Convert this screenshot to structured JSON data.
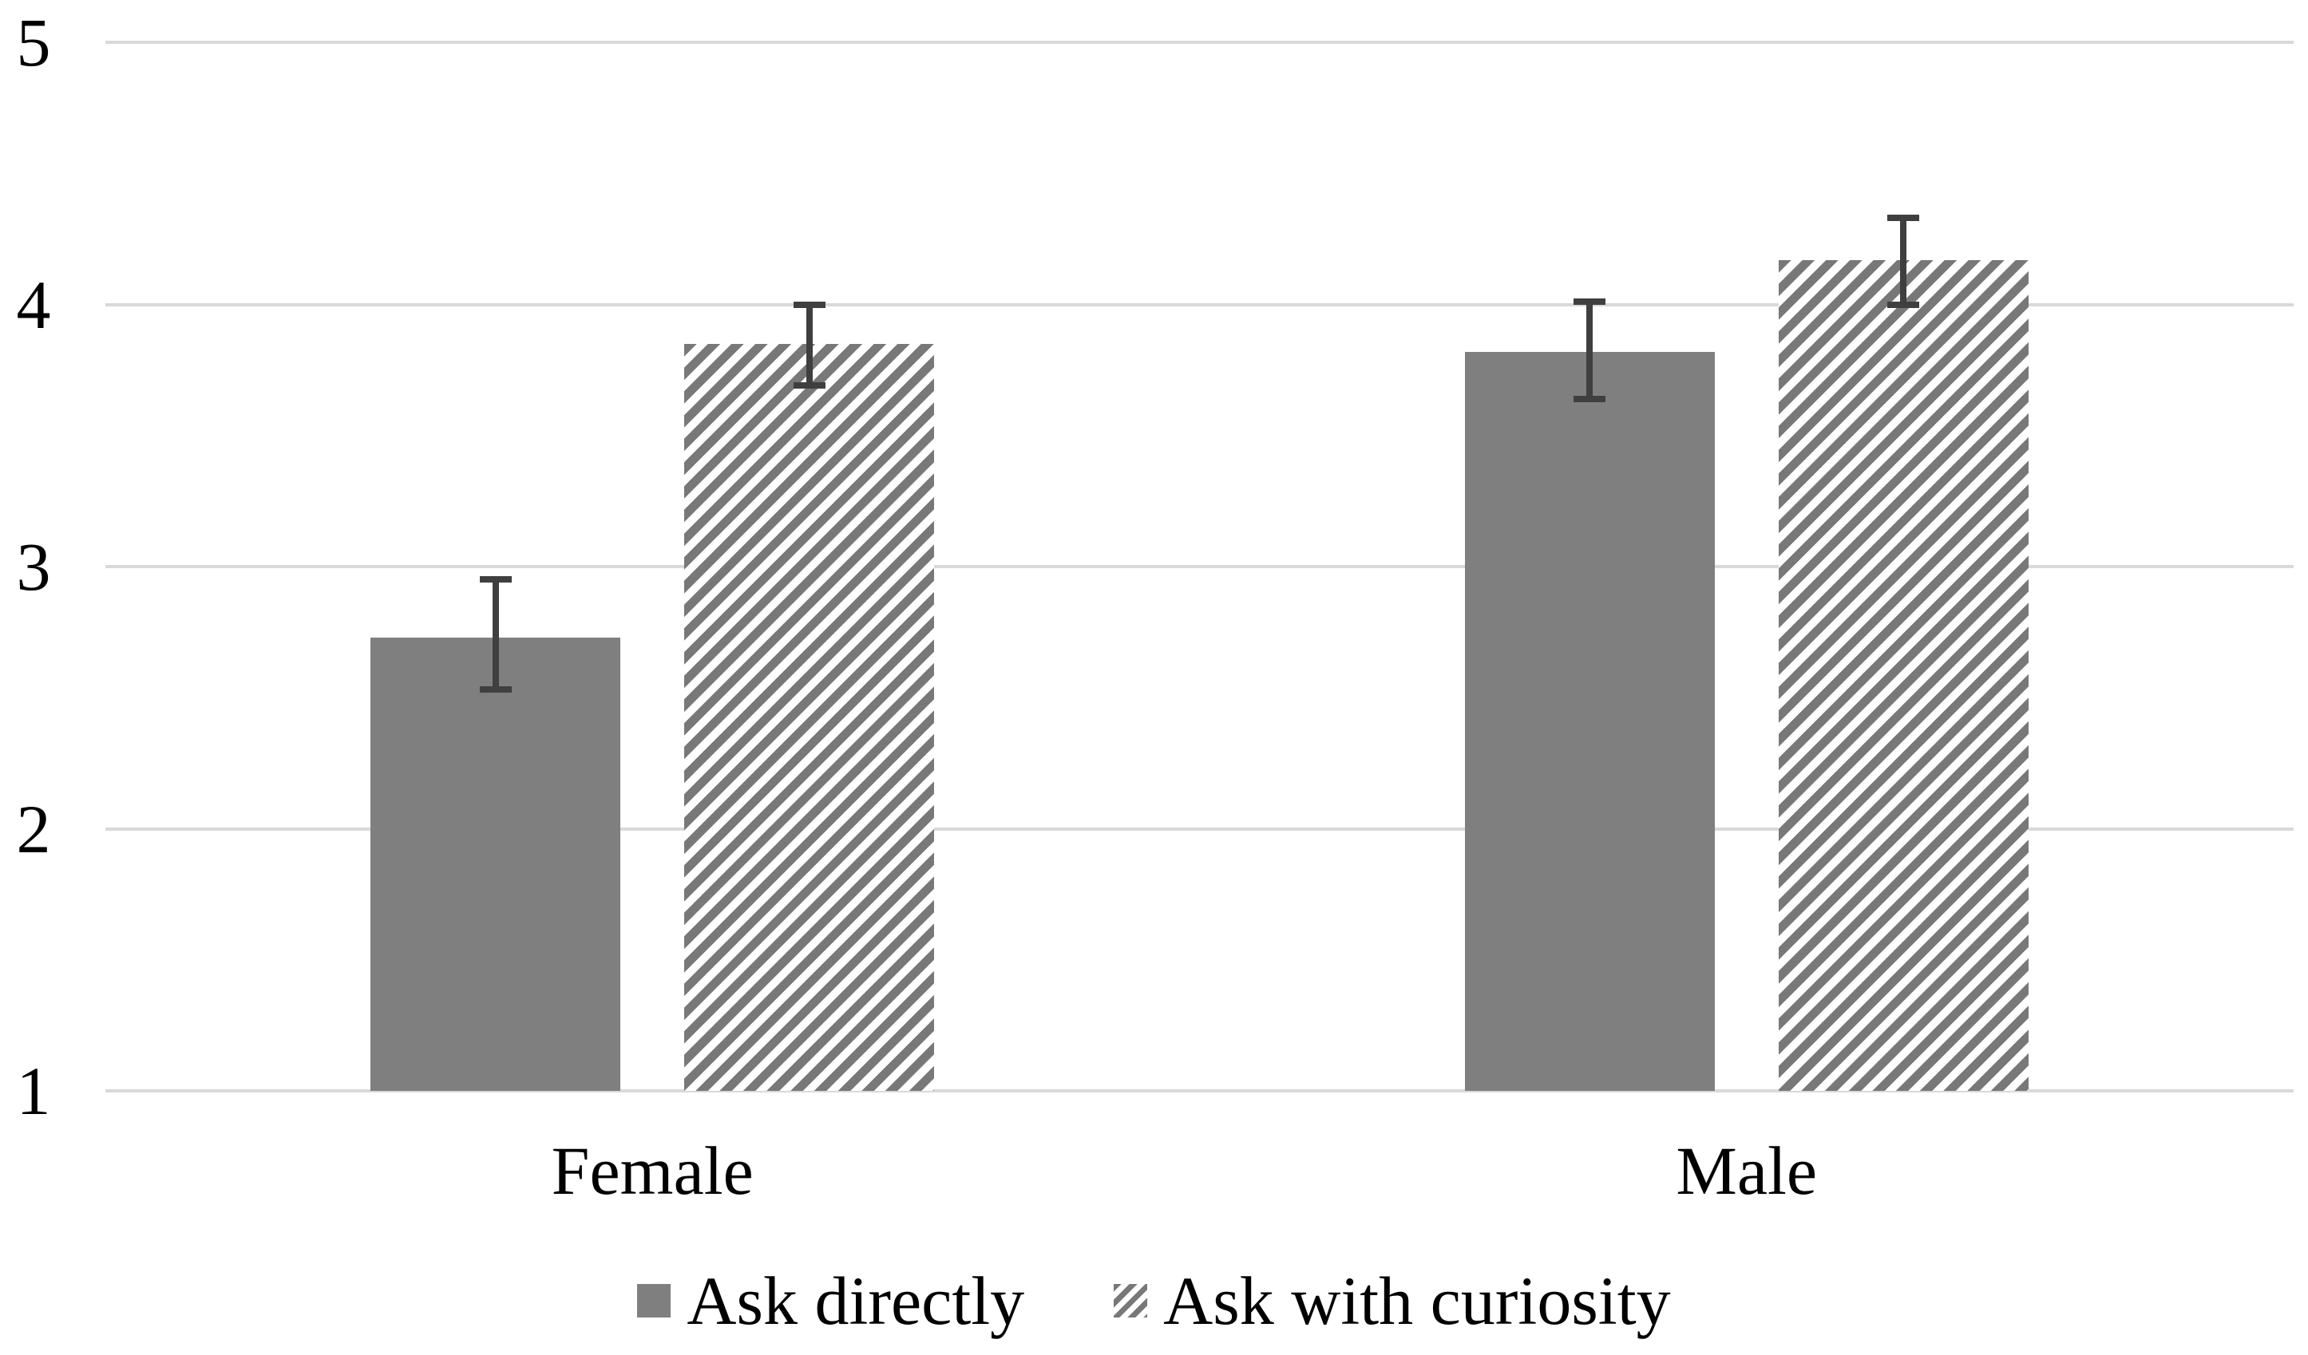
{
  "chart_data": {
    "type": "bar",
    "title": "",
    "xlabel": "",
    "ylabel": "",
    "categories": [
      "Female",
      "Male"
    ],
    "series": [
      {
        "name": "Ask directly",
        "pattern": "solid",
        "values": [
          2.73,
          3.82
        ],
        "error_low": [
          2.53,
          3.64
        ],
        "error_high": [
          2.95,
          4.01
        ]
      },
      {
        "name": "Ask with curiosity",
        "pattern": "diagonal-hatch",
        "values": [
          3.85,
          4.17
        ],
        "error_low": [
          3.69,
          4.0
        ],
        "error_high": [
          4.0,
          4.33
        ]
      }
    ],
    "ylim": [
      1,
      5
    ],
    "yticks": [
      "1",
      "2",
      "3",
      "4",
      "5"
    ],
    "grid": true,
    "error_bars": true,
    "legend_position": "bottom-center"
  },
  "colors": {
    "bar_fill": "#7f7f7f",
    "hatch_stripe": "#787878",
    "error_bar": "#3f3f3f",
    "gridline": "#d9d9d9",
    "text": "#000000",
    "background": "#ffffff"
  }
}
